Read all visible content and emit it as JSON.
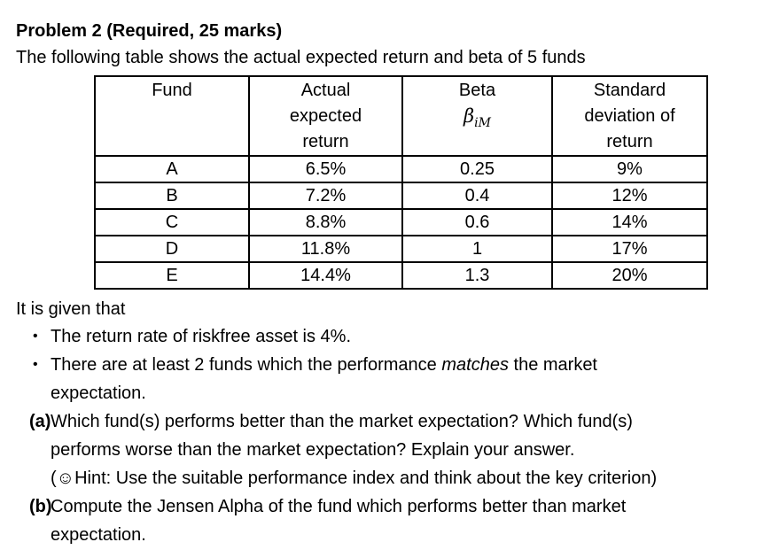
{
  "colors": {
    "text": "#000000",
    "background": "#ffffff",
    "table_border": "#000000"
  },
  "document": {
    "title": "Problem 2 (Required, 25 marks)",
    "intro": "The following table shows the actual expected return and beta of 5 funds",
    "given_lead": "It is given that"
  },
  "table": {
    "headers": {
      "fund": "Fund",
      "actual_line1": "Actual",
      "actual_line2": "expected",
      "actual_line3": "return",
      "beta_line1": "Beta",
      "beta_symbol": "β",
      "beta_subscript": "iM",
      "std_line1": "Standard",
      "std_line2": "deviation of",
      "std_line3": "return"
    },
    "rows": [
      {
        "fund": "A",
        "actual": "6.5%",
        "beta": "0.25",
        "std": "9%"
      },
      {
        "fund": "B",
        "actual": "7.2%",
        "beta": "0.4",
        "std": "12%"
      },
      {
        "fund": "C",
        "actual": "8.8%",
        "beta": "0.6",
        "std": "14%"
      },
      {
        "fund": "D",
        "actual": "11.8%",
        "beta": "1",
        "std": "17%"
      },
      {
        "fund": "E",
        "actual": "14.4%",
        "beta": "1.3",
        "std": "20%"
      }
    ]
  },
  "bullets": {
    "marker": "•",
    "b1": "The return rate of riskfree asset is 4%.",
    "b2_line1_pre": "There are at least 2 funds which the performance ",
    "b2_line1_italic": "matches",
    "b2_line1_post": " the market",
    "b2_line2": "expectation."
  },
  "questions": {
    "a_label": "(a)",
    "a_line1": "Which fund(s) performs better than the market expectation? Which fund(s)",
    "a_line2": "performs worse than the market expectation? Explain your answer.",
    "a_hint_open": "(",
    "a_hint_smiley": "☺",
    "a_hint_rest": "Hint: Use the suitable performance index and think about the key criterion)",
    "b_label": "(b)",
    "b_line1": "Compute the Jensen Alpha of the fund which performs better than market",
    "b_line2": "expectation."
  }
}
